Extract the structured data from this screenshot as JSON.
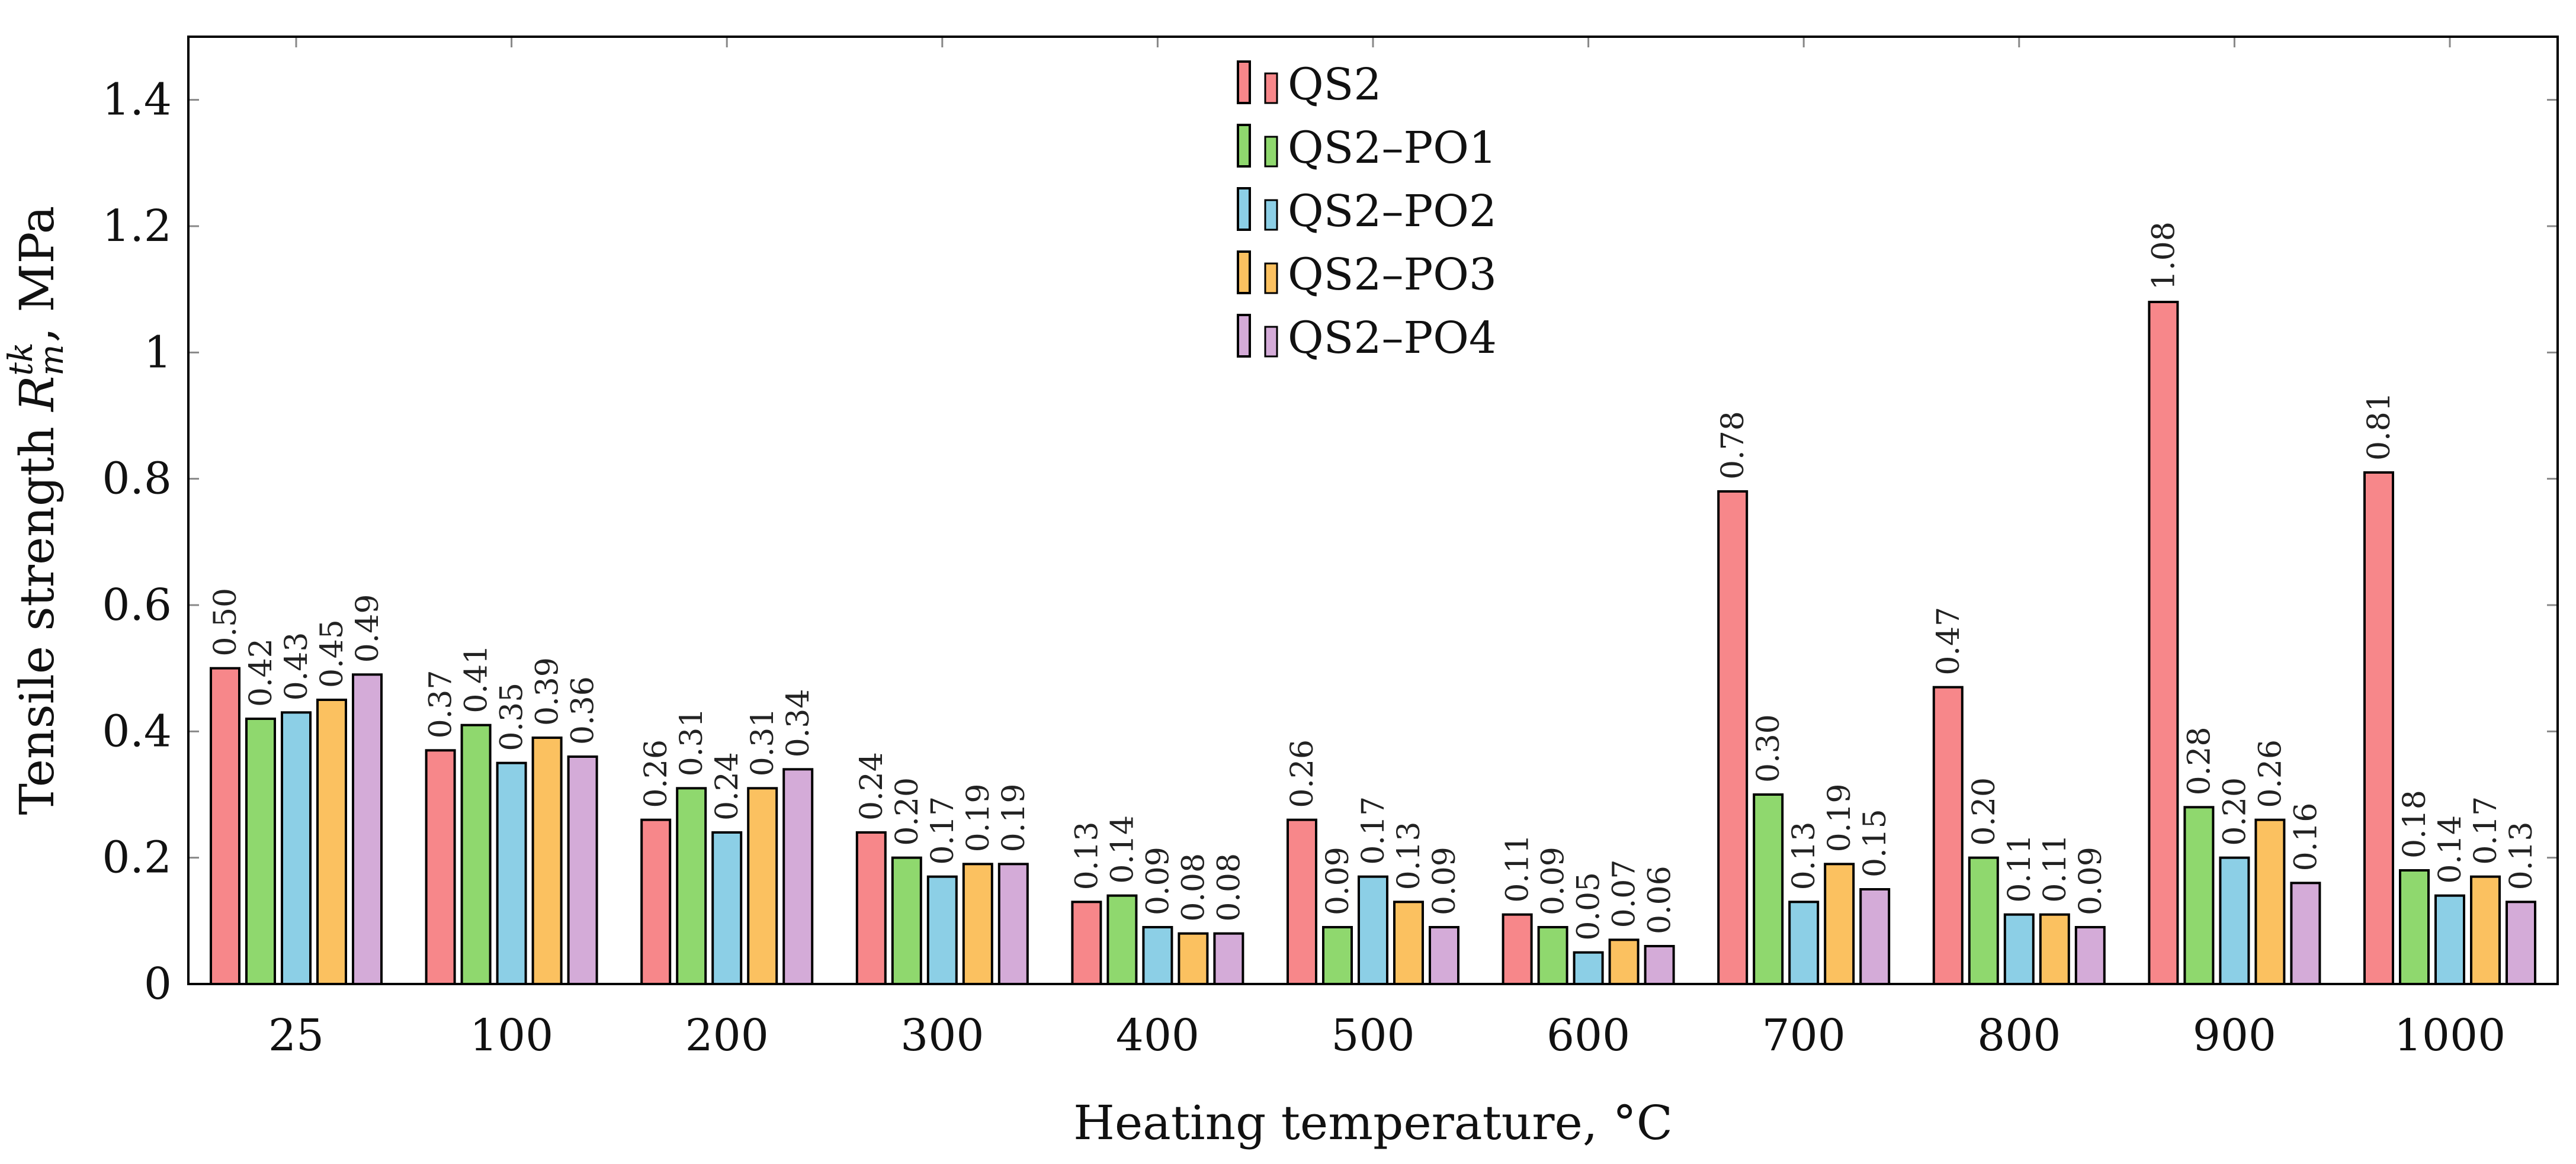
{
  "chart_data": {
    "type": "bar",
    "title": "",
    "xlabel": "Heating temperature, °C",
    "ylabel": {
      "prefix": "Tensile strength ",
      "symbol": "R",
      "sub": "m",
      "sup": "tk",
      "suffix": ", MPa"
    },
    "ylim": [
      0,
      1.5
    ],
    "yticks": [
      0,
      0.2,
      0.4,
      0.6,
      0.8,
      1,
      1.2,
      1.4
    ],
    "ytick_labels": [
      "0",
      "0.2",
      "0.4",
      "0.6",
      "0.8",
      "1",
      "1.2",
      "1.4"
    ],
    "categories": [
      "25",
      "100",
      "200",
      "300",
      "400",
      "500",
      "600",
      "700",
      "800",
      "900",
      "1000"
    ],
    "legend_position": "top-center",
    "series": [
      {
        "name": "QS2",
        "color": "#F7878A",
        "values": [
          0.5,
          0.37,
          0.26,
          0.24,
          0.13,
          0.26,
          0.11,
          0.78,
          0.47,
          1.08,
          0.81
        ],
        "labels": [
          "0.50",
          "0.37",
          "0.26",
          "0.24",
          "0.13",
          "0.26",
          "0.11",
          "0.78",
          "0.47",
          "1.08",
          "0.81"
        ]
      },
      {
        "name": "QS2–PO1",
        "color": "#8FD86E",
        "values": [
          0.42,
          0.41,
          0.31,
          0.2,
          0.14,
          0.09,
          0.09,
          0.3,
          0.2,
          0.28,
          0.18
        ],
        "labels": [
          "0.42",
          "0.41",
          "0.31",
          "0.20",
          "0.14",
          "0.09",
          "0.09",
          "0.30",
          "0.20",
          "0.28",
          "0.18"
        ]
      },
      {
        "name": "QS2–PO2",
        "color": "#8CCFE6",
        "values": [
          0.43,
          0.35,
          0.24,
          0.17,
          0.09,
          0.17,
          0.05,
          0.13,
          0.11,
          0.2,
          0.14
        ],
        "labels": [
          "0.43",
          "0.35",
          "0.24",
          "0.17",
          "0.09",
          "0.17",
          "0.05",
          "0.13",
          "0.11",
          "0.20",
          "0.14"
        ]
      },
      {
        "name": "QS2–PO3",
        "color": "#FBC160",
        "values": [
          0.45,
          0.39,
          0.31,
          0.19,
          0.08,
          0.13,
          0.07,
          0.19,
          0.11,
          0.26,
          0.17
        ],
        "labels": [
          "0.45",
          "0.39",
          "0.31",
          "0.19",
          "0.08",
          "0.13",
          "0.07",
          "0.19",
          "0.11",
          "0.26",
          "0.17"
        ]
      },
      {
        "name": "QS2–PO4",
        "color": "#D4ABD8",
        "values": [
          0.49,
          0.36,
          0.34,
          0.19,
          0.08,
          0.09,
          0.06,
          0.15,
          0.09,
          0.16,
          0.13
        ],
        "labels": [
          "0.49",
          "0.36",
          "0.34",
          "0.19",
          "0.08",
          "0.09",
          "0.06",
          "0.15",
          "0.09",
          "0.16",
          "0.13"
        ]
      }
    ]
  }
}
